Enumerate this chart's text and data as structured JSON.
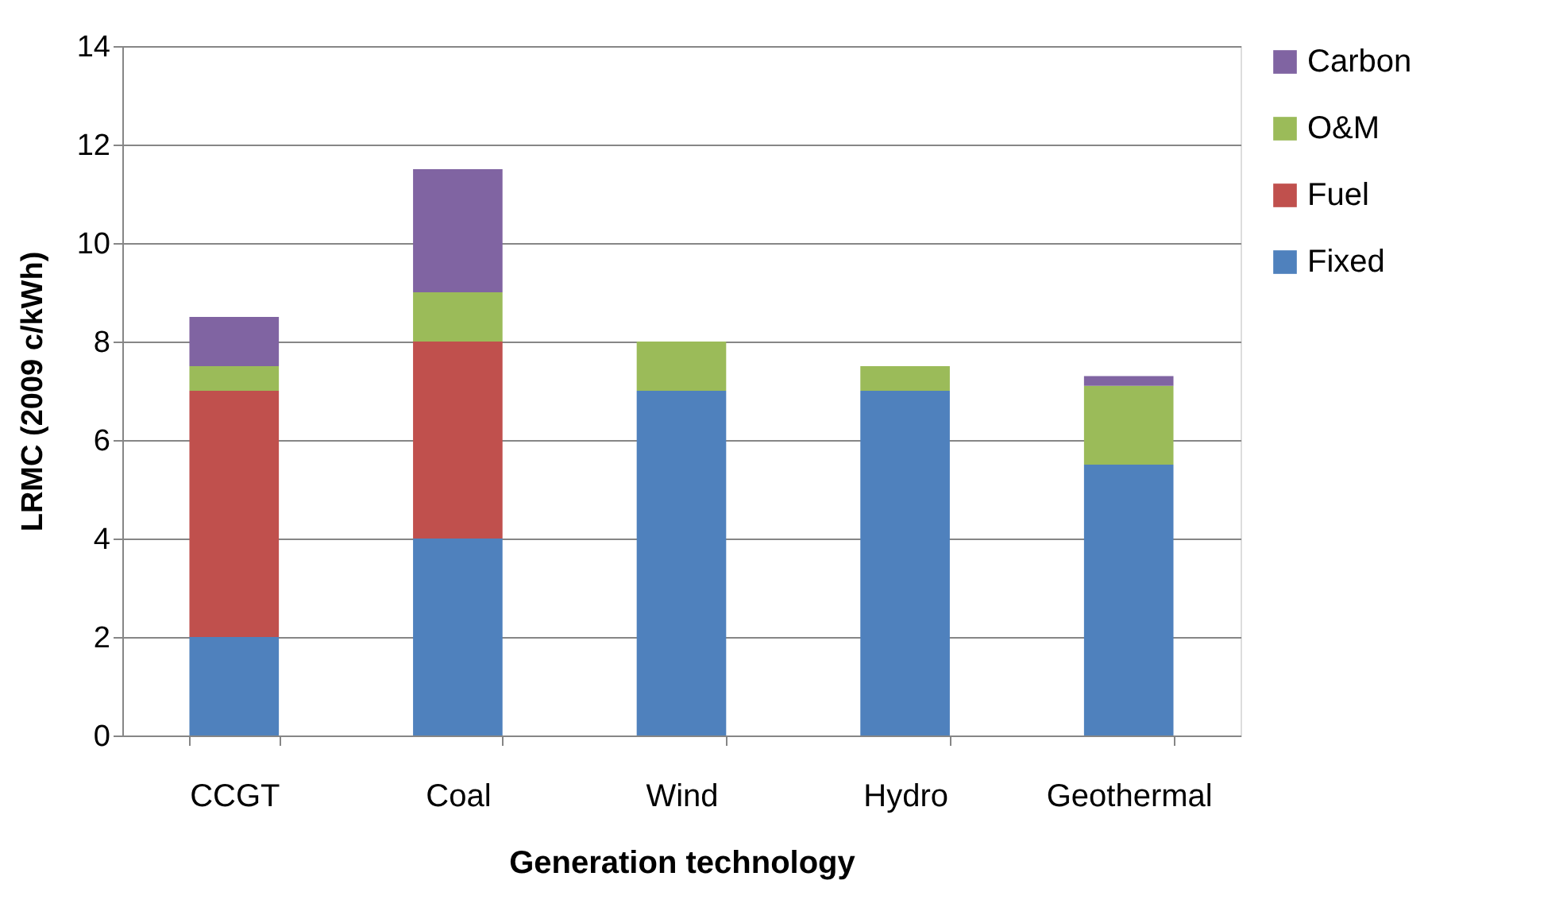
{
  "chart_data": {
    "type": "bar",
    "stacked": true,
    "xlabel": "Generation technology",
    "ylabel": "LRMC  (2009 c/kWh)",
    "categories": [
      "CCGT",
      "Coal",
      "Wind",
      "Hydro",
      "Geothermal"
    ],
    "series": [
      {
        "name": "Fixed",
        "color": "#4f81bd",
        "values": [
          2,
          4,
          7,
          7,
          5.5
        ]
      },
      {
        "name": "Fuel",
        "color": "#c0504d",
        "values": [
          5,
          4,
          null,
          null,
          null
        ]
      },
      {
        "name": "O&M",
        "color": "#9bbb59",
        "values": [
          0.5,
          1,
          1,
          0.5,
          1.6
        ]
      },
      {
        "name": "Carbon",
        "color": "#8064a2",
        "values": [
          1,
          2.5,
          null,
          null,
          0.2
        ]
      }
    ],
    "ylim": [
      0,
      14
    ],
    "yticks": [
      0,
      2,
      4,
      6,
      8,
      10,
      12,
      14
    ],
    "grid": "y",
    "legend": "right"
  }
}
